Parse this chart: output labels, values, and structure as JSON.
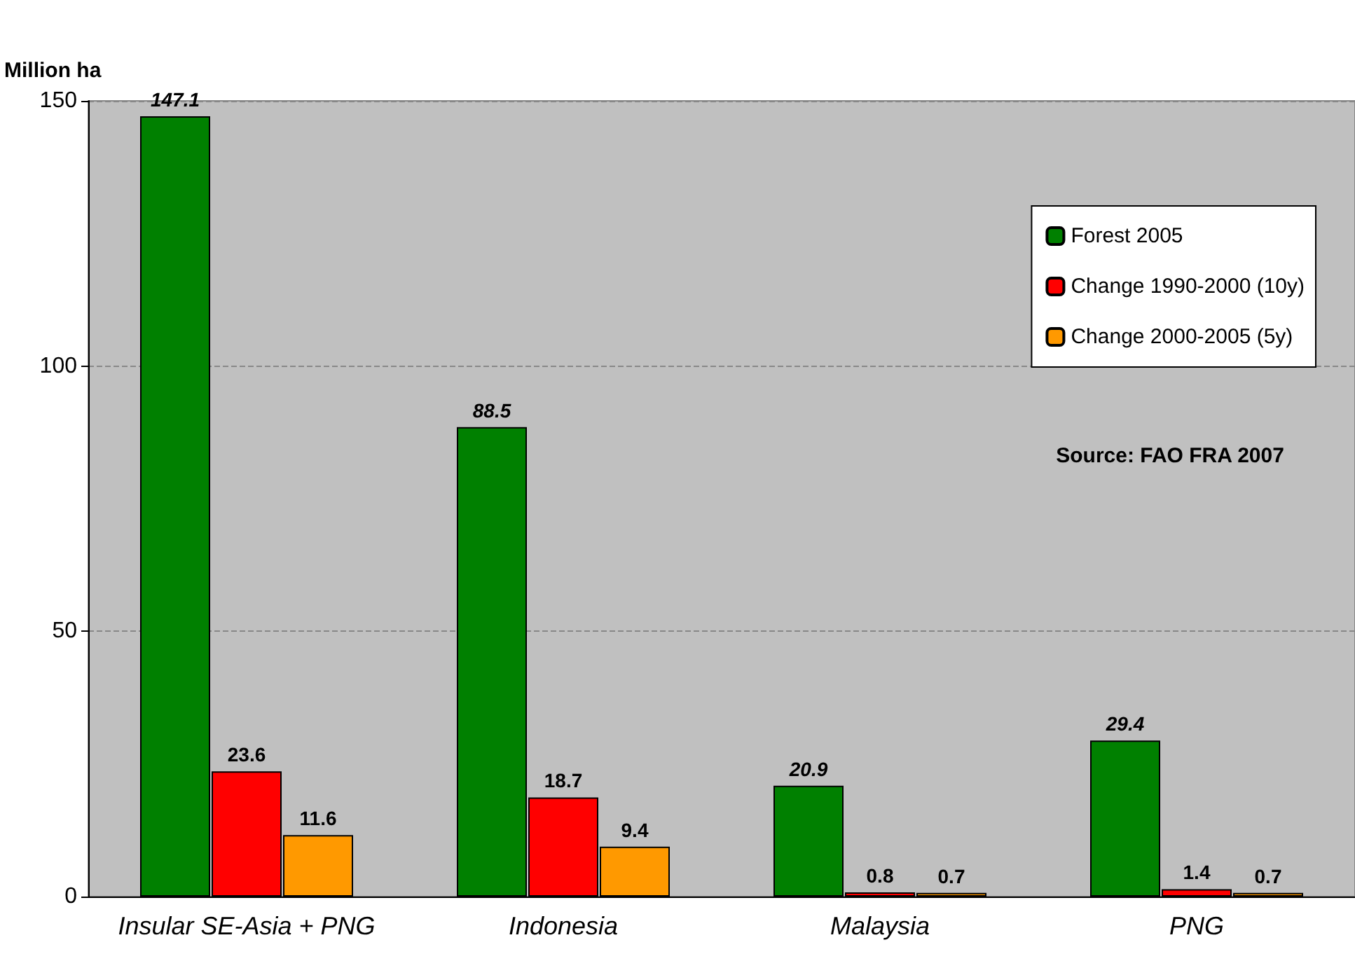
{
  "chart_data": {
    "type": "bar",
    "ylabel": "Million ha",
    "categories": [
      "Insular SE-Asia + PNG",
      "Indonesia",
      "Malaysia",
      "PNG"
    ],
    "series": [
      {
        "name": "Forest 2005",
        "color": "#008000",
        "values": [
          147.1,
          88.5,
          20.9,
          29.4
        ]
      },
      {
        "name": "Change 1990-2000 (10y)",
        "color": "#ff0000",
        "values": [
          23.6,
          18.7,
          0.8,
          1.4
        ]
      },
      {
        "name": "Change 2000-2005 (5y)",
        "color": "#ff9900",
        "values": [
          11.6,
          9.4,
          0.7,
          0.7
        ]
      }
    ],
    "ylim": [
      0,
      150
    ],
    "yticks": [
      0,
      50,
      100,
      150
    ],
    "grid": "y",
    "legend": "top right",
    "data_labels": true,
    "annotations": [
      "Source: FAO FRA 2007"
    ]
  }
}
